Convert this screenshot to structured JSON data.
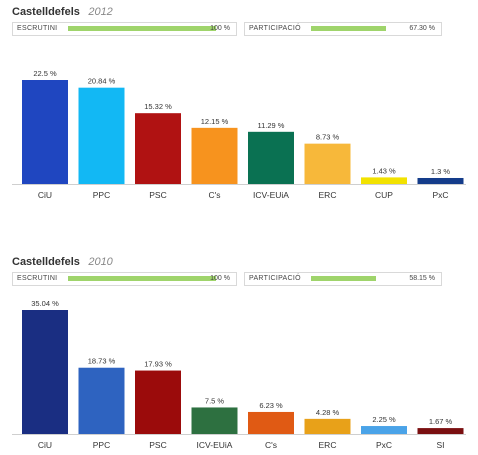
{
  "chart_data": [
    {
      "type": "bar",
      "title": "Castelldefels",
      "subtitle": "2012",
      "escrutini": {
        "label": "ESCRUTINI",
        "value": "100 %",
        "fill": 1.0
      },
      "participacio": {
        "label": "PARTICIPACIÓ",
        "value": "67.30 %",
        "fill": 0.673
      },
      "categories": [
        "CiU",
        "PPC",
        "PSC",
        "C's",
        "ICV-EUiA",
        "ERC",
        "CUP",
        "PxC"
      ],
      "values": [
        22.5,
        20.84,
        15.32,
        12.15,
        11.29,
        8.73,
        1.43,
        1.3
      ],
      "value_labels": [
        "22.5 %",
        "20.84 %",
        "15.32 %",
        "12.15 %",
        "11.29 %",
        "8.73 %",
        "1.43 %",
        "1.3 %"
      ],
      "colors": [
        "#1f46c0",
        "#12b8f4",
        "#b01212",
        "#f7931e",
        "#0a7152",
        "#f7b83a",
        "#f2e200",
        "#143c8a"
      ],
      "ylim": [
        0,
        22.5
      ]
    },
    {
      "type": "bar",
      "title": "Castelldefels",
      "subtitle": "2010",
      "escrutini": {
        "label": "ESCRUTINI",
        "value": "100 %",
        "fill": 1.0
      },
      "participacio": {
        "label": "PARTICIPACIÓ",
        "value": "58.15 %",
        "fill": 0.5815
      },
      "categories": [
        "CiU",
        "PPC",
        "PSC",
        "ICV-EUiA",
        "C's",
        "ERC",
        "PxC",
        "SI"
      ],
      "values": [
        35.04,
        18.73,
        17.93,
        7.5,
        6.23,
        4.28,
        2.25,
        1.67
      ],
      "value_labels": [
        "35.04 %",
        "18.73 %",
        "17.93 %",
        "7.5 %",
        "6.23 %",
        "4.28 %",
        "2.25 %",
        "1.67 %"
      ],
      "colors": [
        "#1a2e82",
        "#2e63c0",
        "#9b0b0b",
        "#2d7040",
        "#e05a14",
        "#e8a119",
        "#4aa3e8",
        "#7a0f10"
      ],
      "ylim": [
        0,
        35.04
      ]
    }
  ]
}
